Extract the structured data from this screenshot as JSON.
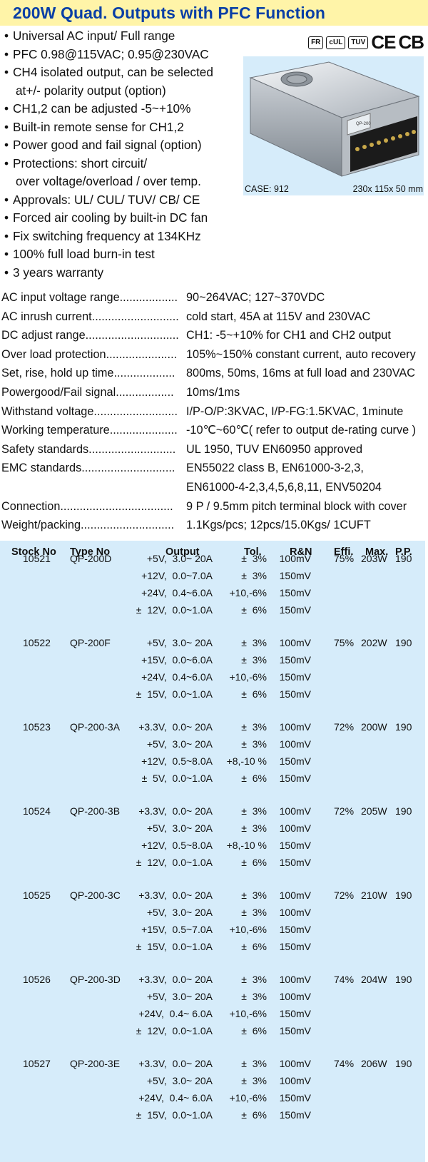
{
  "title": "200W Quad. Outputs with PFC Function",
  "features": [
    "Universal AC input/ Full range",
    "PFC 0.98@115VAC; 0.95@230VAC",
    "CH4 isolated output, can be selected",
    "at+/- polarity output (option)",
    "CH1,2 can be adjusted -5~+10%",
    "Built-in remote sense for CH1,2",
    "Power good and fail signal (option)",
    "Protections: short circuit/",
    "over voltage/overload / over temp.",
    "Approvals: UL/ CUL/ TUV/ CB/ CE",
    "Forced air cooling by built-in DC fan",
    "Fix switching frequency at 134KHz",
    "100% full load burn-in test",
    "3 years warranty"
  ],
  "feature_bullets": [
    true,
    true,
    true,
    false,
    true,
    true,
    true,
    true,
    false,
    true,
    true,
    true,
    true,
    true
  ],
  "certs": [
    "FR",
    "cUL",
    "TUV",
    "CE",
    "CB"
  ],
  "product": {
    "model_label": "QP-200",
    "case_label": "CASE: 912",
    "dims": "230x 115x 50 mm"
  },
  "specs": [
    {
      "label": "AC input voltage range..................",
      "value": "90~264VAC; 127~370VDC"
    },
    {
      "label": "AC inrush current...........................",
      "value": "cold start, 45A at 115V and 230VAC"
    },
    {
      "label": "DC adjust range.............................",
      "value": "CH1: -5~+10% for CH1 and CH2 output"
    },
    {
      "label": "Over load protection......................",
      "value": "105%~150% constant current, auto recovery"
    },
    {
      "label": "Set, rise, hold up time...................",
      "value": "800ms, 50ms, 16ms at full load and 230VAC"
    },
    {
      "label": "Powergood/Fail signal..................",
      "value": "10ms/1ms"
    },
    {
      "label": "Withstand voltage..........................",
      "value": "I/P-O/P:3KVAC, I/P-FG:1.5KVAC, 1minute"
    },
    {
      "label": "Working temperature.....................",
      "value": "-10℃~60℃( refer to output de-rating curve )"
    },
    {
      "label": "Safety standards...........................",
      "value": "UL 1950, TUV EN60950 approved"
    },
    {
      "label": "EMC standards.............................",
      "value": "EN55022 class B, EN61000-3-2,3,"
    },
    {
      "label": "",
      "value": "EN61000-4-2,3,4,5,6,8,11, ENV50204"
    },
    {
      "label": "Connection...................................",
      "value": "9 P / 9.5mm pitch terminal block with cover"
    },
    {
      "label": "Weight/packing.............................",
      "value": "1.1Kgs/pcs; 12pcs/15.0Kgs/ 1CUFT"
    }
  ],
  "table": {
    "headers": [
      "Stock No",
      "Type No",
      "Output",
      "Tol.",
      "R&N",
      "Effi.",
      "Max.",
      "P.P."
    ],
    "groups": [
      {
        "stock": "10521",
        "type": "QP-200D",
        "outputs": [
          "+5V,  3.0~ 20A",
          "+12V,  0.0~7.0A",
          "+24V,  0.4~6.0A",
          "±  12V,  0.0~1.0A"
        ],
        "tol": [
          "±  3%",
          "±  3%",
          "+10,-6%",
          "±  6%"
        ],
        "rn": [
          "100mV",
          "150mV",
          "150mV",
          "150mV"
        ],
        "effi": "75%",
        "max": "203W",
        "pp": "190"
      },
      {
        "stock": "10522",
        "type": "QP-200F",
        "outputs": [
          "+5V,  3.0~ 20A",
          "+15V,  0.0~6.0A",
          "+24V,  0.4~6.0A",
          "±  15V,  0.0~1.0A"
        ],
        "tol": [
          "±  3%",
          "±  3%",
          "+10,-6%",
          "±  6%"
        ],
        "rn": [
          "100mV",
          "150mV",
          "150mV",
          "150mV"
        ],
        "effi": "75%",
        "max": "202W",
        "pp": "190"
      },
      {
        "stock": "10523",
        "type": "QP-200-3A",
        "outputs": [
          "+3.3V,  0.0~ 20A",
          "+5V,  3.0~ 20A",
          "+12V,  0.5~8.0A",
          "±  5V,  0.0~1.0A"
        ],
        "tol": [
          "±  3%",
          "±  3%",
          "+8,-10 %",
          "±  6%"
        ],
        "rn": [
          "100mV",
          "100mV",
          "150mV",
          "150mV"
        ],
        "effi": "72%",
        "max": "200W",
        "pp": "190"
      },
      {
        "stock": "10524",
        "type": "QP-200-3B",
        "outputs": [
          "+3.3V,  0.0~ 20A",
          "+5V,  3.0~ 20A",
          "+12V,  0.5~8.0A",
          "±  12V,  0.0~1.0A"
        ],
        "tol": [
          "±  3%",
          "±  3%",
          "+8,-10 %",
          "±  6%"
        ],
        "rn": [
          "100mV",
          "100mV",
          "150mV",
          "150mV"
        ],
        "effi": "72%",
        "max": "205W",
        "pp": "190"
      },
      {
        "stock": "10525",
        "type": "QP-200-3C",
        "outputs": [
          "+3.3V,  0.0~ 20A",
          "+5V,  3.0~ 20A",
          "+15V,  0.5~7.0A",
          "±  15V,  0.0~1.0A"
        ],
        "tol": [
          "±  3%",
          "±  3%",
          "+10,-6%",
          "±  6%"
        ],
        "rn": [
          "100mV",
          "100mV",
          "150mV",
          "150mV"
        ],
        "effi": "72%",
        "max": "210W",
        "pp": "190"
      },
      {
        "stock": "10526",
        "type": "QP-200-3D",
        "outputs": [
          "+3.3V,  0.0~ 20A",
          "+5V,  3.0~ 20A",
          "+24V,  0.4~ 6.0A",
          "±  12V,  0.0~1.0A"
        ],
        "tol": [
          "±  3%",
          "±  3%",
          "+10,-6%",
          "±  6%"
        ],
        "rn": [
          "100mV",
          "100mV",
          "150mV",
          "150mV"
        ],
        "effi": "74%",
        "max": "204W",
        "pp": "190"
      },
      {
        "stock": "10527",
        "type": "QP-200-3E",
        "outputs": [
          "+3.3V,  0.0~ 20A",
          "+5V,  3.0~ 20A",
          "+24V,  0.4~ 6.0A",
          "±  15V,  0.0~1.0A"
        ],
        "tol": [
          "±  3%",
          "±  3%",
          "+10,-6%",
          "±  6%"
        ],
        "rn": [
          "100mV",
          "100mV",
          "150mV",
          "150mV"
        ],
        "effi": "74%",
        "max": "206W",
        "pp": "190"
      }
    ]
  },
  "colors": {
    "title_bg": "#fff4a8",
    "title_text": "#0a3fa6",
    "panel_bg": "#d6ecfa"
  }
}
